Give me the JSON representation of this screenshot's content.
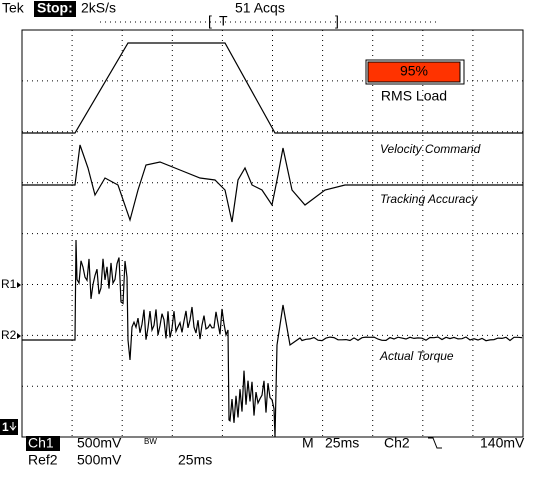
{
  "header": {
    "brand": "Tek",
    "state": "Stop:",
    "rate": "2kS/s",
    "acqs": "51 Acqs",
    "trigger_left": "[",
    "trigger_mark": "T",
    "trigger_right": "]"
  },
  "rms_gauge": {
    "value_text": "95%",
    "label": "RMS Load"
  },
  "trace_labels": [
    "Velocity Command",
    "Tracking Accuracy",
    "Actual Torque"
  ],
  "markers": [
    "R1",
    "R2",
    "1"
  ],
  "footer": {
    "channel": "Ch1",
    "ch1_scale": "500mV",
    "bw": "BW",
    "mode": "M",
    "timebase": "25ms",
    "trigger_source": "Ch2",
    "trigger_level": "140mV",
    "ref": "Ref2",
    "ref_scale": "500mV",
    "ref_time": "25ms"
  }
}
